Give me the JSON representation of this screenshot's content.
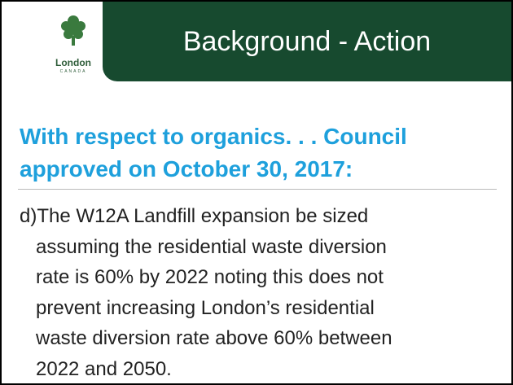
{
  "header": {
    "title": "Background - Action"
  },
  "logo": {
    "name": "London",
    "country": "CANADA"
  },
  "heading": {
    "lines": [
      "With respect to organics. . . Council",
      "approved on October 30, 2017:"
    ]
  },
  "body": {
    "lines": [
      "d)The W12A Landfill expansion be sized",
      "assuming the residential waste diversion",
      "rate is 60% by 2022 noting this does not",
      "prevent increasing London’s residential",
      "waste diversion rate above 60% between",
      "2022 and 2050."
    ]
  }
}
